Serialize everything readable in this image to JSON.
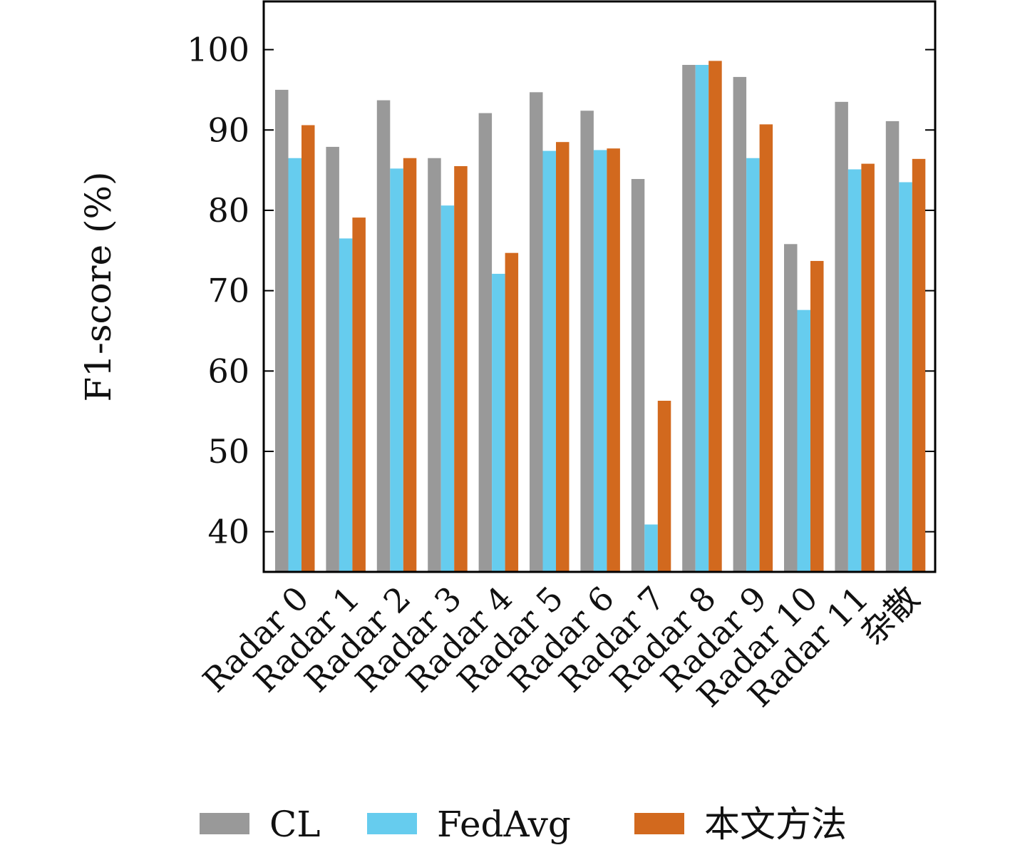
{
  "chart_data": {
    "type": "bar",
    "title": "",
    "xlabel": "",
    "ylabel": "F1-score (%)",
    "ylim": [
      35,
      106
    ],
    "yticks": [
      40,
      50,
      60,
      70,
      80,
      90,
      100
    ],
    "categories": [
      "Radar 0",
      "Radar 1",
      "Radar 2",
      "Radar 3",
      "Radar 4",
      "Radar 5",
      "Radar 6",
      "Radar 7",
      "Radar 8",
      "Radar 9",
      "Radar 10",
      "Radar 11",
      "杂散"
    ],
    "series": [
      {
        "name": "CL",
        "color": "#999999",
        "values": [
          95.0,
          87.9,
          93.7,
          86.5,
          92.1,
          94.7,
          92.4,
          83.9,
          98.1,
          96.6,
          75.8,
          93.5,
          91.1
        ]
      },
      {
        "name": "FedAvg",
        "color": "#66ccee",
        "values": [
          86.5,
          76.5,
          85.2,
          80.6,
          72.1,
          87.4,
          87.5,
          40.9,
          98.1,
          86.5,
          67.6,
          85.1,
          83.5
        ]
      },
      {
        "name": "本文方法",
        "color": "#d2691e",
        "values": [
          90.6,
          79.1,
          86.5,
          85.5,
          74.7,
          88.5,
          87.7,
          56.3,
          98.6,
          90.7,
          73.7,
          85.8,
          86.4
        ]
      }
    ],
    "grid": false,
    "legend_position": "bottom"
  }
}
